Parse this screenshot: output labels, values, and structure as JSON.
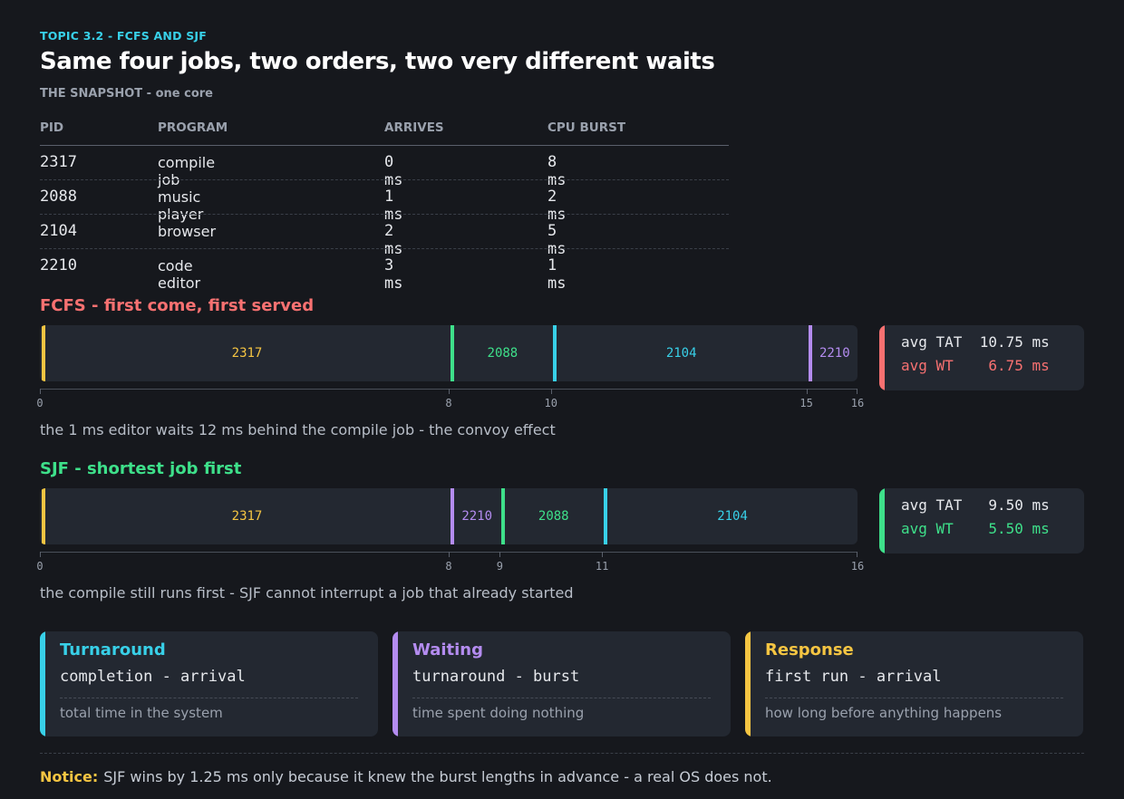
{
  "header": {
    "topic": "TOPIC 3.2  -  FCFS AND SJF",
    "title": "Same four jobs, two orders, two very different waits",
    "snapshot_label": "THE SNAPSHOT",
    "snapshot_sep": " - ",
    "snapshot_note": "one core"
  },
  "table": {
    "columns": [
      "PID",
      "PROGRAM",
      "ARRIVES",
      "CPU BURST"
    ],
    "rows": [
      {
        "pid": "2317",
        "program": "compile job",
        "arrives": "0 ms",
        "burst": "8 ms"
      },
      {
        "pid": "2088",
        "program": "music player",
        "arrives": "1 ms",
        "burst": "2 ms"
      },
      {
        "pid": "2104",
        "program": "browser",
        "arrives": "2 ms",
        "burst": "5 ms"
      },
      {
        "pid": "2210",
        "program": "code editor",
        "arrives": "3 ms",
        "burst": "1 ms"
      }
    ]
  },
  "colors": {
    "2317": "#f5c542",
    "2088": "#3ee08a",
    "2104": "#38d0e8",
    "2210": "#b48cf0",
    "fcfs": "#f87171",
    "sjf": "#3ee08a",
    "turnaround": "#38d0e8",
    "waiting": "#b48cf0",
    "response": "#f5c542"
  },
  "fcfs": {
    "title": "FCFS  -  first come, first served",
    "segments": [
      {
        "pid": "2317",
        "start": 0,
        "end": 8
      },
      {
        "pid": "2088",
        "start": 8,
        "end": 10
      },
      {
        "pid": "2104",
        "start": 10,
        "end": 15
      },
      {
        "pid": "2210",
        "start": 15,
        "end": 16
      }
    ],
    "ticks": [
      0,
      8,
      10,
      15,
      16
    ],
    "note": "the 1 ms editor waits 12 ms behind the compile job  -  the convoy effect",
    "avg_tat": "avg TAT  10.75 ms",
    "avg_wt": "avg WT    6.75 ms"
  },
  "sjf": {
    "title": "SJF  -  shortest job first",
    "segments": [
      {
        "pid": "2317",
        "start": 0,
        "end": 8
      },
      {
        "pid": "2210",
        "start": 8,
        "end": 9
      },
      {
        "pid": "2088",
        "start": 9,
        "end": 11
      },
      {
        "pid": "2104",
        "start": 11,
        "end": 16
      }
    ],
    "ticks": [
      0,
      8,
      9,
      11,
      16
    ],
    "note": "the compile still runs first  -  SJF cannot interrupt a job that already started",
    "avg_tat": "avg TAT   9.50 ms",
    "avg_wt": "avg WT    5.50 ms"
  },
  "cards": [
    {
      "title": "Turnaround",
      "formula": "completion - arrival",
      "desc": "total time in the system"
    },
    {
      "title": "Waiting",
      "formula": "turnaround - burst",
      "desc": "time spent doing nothing"
    },
    {
      "title": "Response",
      "formula": "first run - arrival",
      "desc": "how long before anything happens"
    }
  ],
  "footer": {
    "label": "Notice:",
    "text": "SJF wins by 1.25 ms only because it knew the burst lengths in advance - a real OS does not."
  }
}
